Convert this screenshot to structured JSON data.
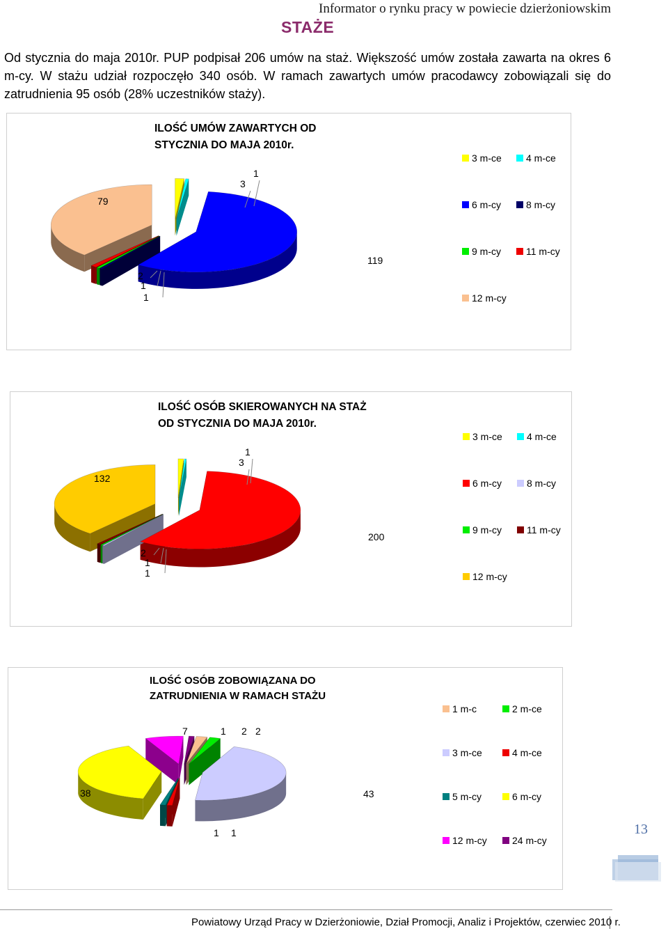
{
  "header": {
    "title": "Informator o rynku pracy w powiecie dzierżoniowskim",
    "section": "STAŻE"
  },
  "intro": {
    "text": "Od stycznia do maja 2010r. PUP podpisał 206 umów na staż. Większość umów została zawarta na okres 6 m-cy. W stażu udział rozpoczęło 340 osób. W ramach zawartych umów pracodawcy zobowiązali się do zatrudnienia 95 osób (28% uczestników staży)."
  },
  "chart_data": [
    {
      "type": "pie",
      "title_line1": "ILOŚĆ UMÓW ZAWARTYCH OD",
      "title_line2": "STYCZNIA DO MAJA 2010r.",
      "categories": [
        "3 m-ce",
        "4 m-ce",
        "6 m-cy",
        "8 m-cy",
        "9 m-cy",
        "11 m-cy",
        "12 m-cy"
      ],
      "values": [
        3,
        1,
        119,
        1,
        1,
        2,
        79
      ],
      "colors": [
        "#ffff00",
        "#00ffff",
        "#0000ff",
        "#000066",
        "#00ee00",
        "#ee0000",
        "#fac090"
      ],
      "legend_position": "right",
      "three_d": true
    },
    {
      "type": "pie",
      "title_line1": "ILOŚĆ OSÓB SKIEROWANYCH NA STAŻ",
      "title_line2": "OD STYCZNIA DO MAJA 2010r.",
      "categories": [
        "3 m-ce",
        "4 m-ce",
        "6 m-cy",
        "8 m-cy",
        "9 m-cy",
        "11 m-cy",
        "12 m-cy"
      ],
      "values": [
        3,
        1,
        200,
        1,
        1,
        2,
        132
      ],
      "colors": [
        "#ffff00",
        "#00ffff",
        "#ff0000",
        "#ccccff",
        "#00ee00",
        "#800000",
        "#ffcc00"
      ],
      "legend_position": "right",
      "three_d": true
    },
    {
      "type": "pie",
      "title_line1": "ILOŚĆ OSÓB ZOBOWIĄZANA DO",
      "title_line2": "ZATRUDNIENIA W RAMACH STAŻU",
      "categories": [
        "1 m-c",
        "2 m-ce",
        "3 m-ce",
        "4 m-ce",
        "5 m-cy",
        "6 m-cy",
        "12 m-cy",
        "24 m-cy"
      ],
      "values": [
        2,
        2,
        43,
        1,
        1,
        38,
        7,
        1
      ],
      "colors": [
        "#fac090",
        "#00ee00",
        "#ccccff",
        "#ee0000",
        "#008080",
        "#ffff00",
        "#ff00ff",
        "#800080"
      ],
      "legend_position": "right",
      "three_d": true
    }
  ],
  "page": {
    "number": "13"
  },
  "footer": {
    "text": "Powiatowy Urząd Pracy w Dzierżoniowie, Dział Promocji, Analiz i Projektów, czerwiec 2010 r."
  }
}
